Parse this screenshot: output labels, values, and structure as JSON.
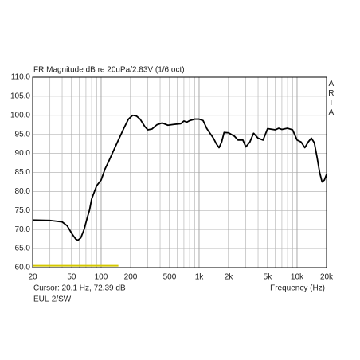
{
  "chart_data": {
    "type": "line",
    "title": "FR Magnitude dB re 20uPa/2.83V (1/6 oct)",
    "side_label": "ARTA",
    "xlabel": "Frequency (Hz)",
    "cursor_text": "Cursor: 20.1 Hz, 72.39 dB",
    "footer": "EUL-2/SW",
    "log_x": true,
    "grid": true,
    "xlim": [
      20,
      20000
    ],
    "xticks": [
      20,
      50,
      100,
      200,
      500,
      {
        "value": 1000,
        "label": "1k"
      },
      {
        "value": 2000,
        "label": "2k"
      },
      {
        "value": 5000,
        "label": "5k"
      },
      {
        "value": 10000,
        "label": "10k"
      },
      {
        "value": 20000,
        "label": "20k"
      }
    ],
    "ylim": [
      60,
      110
    ],
    "yticks": [
      {
        "value": 60,
        "label": "60.0"
      },
      {
        "value": 65,
        "label": "65.0"
      },
      {
        "value": 70,
        "label": "70.0"
      },
      {
        "value": 75,
        "label": "75.0"
      },
      {
        "value": 80,
        "label": "80.0"
      },
      {
        "value": 85,
        "label": "85.0"
      },
      {
        "value": 90,
        "label": "90.0"
      },
      {
        "value": 95,
        "label": "95.0"
      },
      {
        "value": 100,
        "label": "100.0"
      },
      {
        "value": 105,
        "label": "105.0"
      },
      {
        "value": 110,
        "label": "110.0"
      }
    ],
    "band": {
      "x": [
        20,
        150
      ],
      "y": 60.5,
      "color": "#d4c800"
    },
    "series": [
      {
        "color": "#000000",
        "x": [
          20,
          30,
          40,
          45,
          50,
          55,
          58,
          62,
          67,
          72,
          76,
          80,
          90,
          100,
          110,
          120,
          130,
          150,
          170,
          190,
          210,
          230,
          250,
          280,
          300,
          330,
          370,
          420,
          480,
          550,
          650,
          700,
          750,
          800,
          900,
          1000,
          1100,
          1200,
          1400,
          1500,
          1600,
          1700,
          1800,
          2000,
          2300,
          2500,
          2800,
          3000,
          3300,
          3600,
          4000,
          4500,
          5000,
          6000,
          6500,
          7000,
          8000,
          9000,
          10000,
          11000,
          12000,
          13000,
          14000,
          15000,
          16000,
          17000,
          18000,
          19000,
          20000
        ],
        "values": [
          72.5,
          72.4,
          72,
          71,
          69,
          67.5,
          67.2,
          67.8,
          70,
          73,
          75,
          78,
          81.5,
          83,
          86,
          88,
          90,
          93.5,
          96.5,
          99,
          100,
          99.8,
          99,
          97,
          96.2,
          96.4,
          97.5,
          98,
          97.4,
          97.6,
          97.8,
          98.5,
          98.2,
          98.6,
          99,
          99,
          98.6,
          96.5,
          94,
          92.5,
          91.5,
          93,
          95.5,
          95.4,
          94.5,
          93.5,
          93.5,
          91.7,
          93,
          95.3,
          94,
          93.5,
          96.5,
          96.2,
          96.6,
          96.3,
          96.6,
          96.2,
          93.5,
          93,
          91.5,
          93,
          94,
          92.8,
          89,
          85,
          82.5,
          83,
          84.5
        ]
      }
    ]
  }
}
